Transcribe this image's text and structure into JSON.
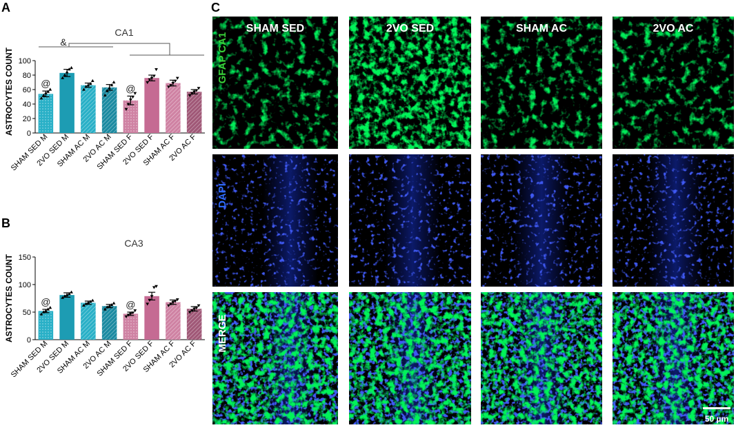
{
  "panels": {
    "A": "A",
    "B": "B",
    "C": "C"
  },
  "chart_data": [
    {
      "type": "bar",
      "title": "CA1",
      "ylabel": "ASTROCYTES COUNT",
      "ylim": [
        0,
        100
      ],
      "yticks": [
        "0",
        "20",
        "40",
        "60",
        "80",
        "100"
      ],
      "categories": [
        "SHAM SED M",
        "2VO SED M",
        "SHAM AC M",
        "2VO AC M",
        "SHAM SED F",
        "2VO SED F",
        "SHAM AC F",
        "2VO AC F"
      ],
      "values": [
        54,
        83,
        66,
        63,
        45,
        76,
        69,
        57
      ],
      "errors": [
        4,
        5,
        3,
        4,
        6,
        4,
        4,
        3
      ],
      "annotations": [
        "@",
        "",
        "",
        "",
        "@",
        "",
        "",
        ""
      ],
      "significance": "&",
      "colors": [
        "#29b0c7",
        "#1d9cb3",
        "#29b0c7",
        "#1b8aa1",
        "#cf82a3",
        "#c56b93",
        "#cf82a3",
        "#a05877"
      ],
      "patterns": [
        "dots",
        "solid",
        "hatch",
        "hatch",
        "dots",
        "solid",
        "hatch",
        "hatch"
      ],
      "points": [
        [
          48,
          52,
          55,
          57,
          60
        ],
        [
          76,
          80,
          84,
          88,
          90
        ],
        [
          60,
          64,
          66,
          68,
          72
        ],
        [
          52,
          58,
          62,
          66,
          70
        ],
        [
          33,
          40,
          46,
          50,
          55
        ],
        [
          70,
          74,
          76,
          79,
          88
        ],
        [
          64,
          66,
          69,
          72,
          76
        ],
        [
          52,
          55,
          57,
          59,
          62
        ]
      ]
    },
    {
      "type": "bar",
      "title": "CA3",
      "ylabel": "ASTROCYTES COUNT",
      "ylim": [
        0,
        150
      ],
      "yticks": [
        "0",
        "50",
        "100",
        "150"
      ],
      "categories": [
        "SHAM SED M",
        "2VO SED M",
        "SHAM AC M",
        "2VO AC M",
        "SHAM SED F",
        "2VO SED F",
        "SHAM AC F",
        "2VO AC F"
      ],
      "values": [
        52,
        81,
        67,
        61,
        47,
        79,
        68,
        56
      ],
      "errors": [
        3,
        4,
        3,
        3,
        3,
        7,
        4,
        4
      ],
      "annotations": [
        "@",
        "",
        "",
        "",
        "@",
        "",
        "",
        ""
      ],
      "colors": [
        "#29b0c7",
        "#1d9cb3",
        "#29b0c7",
        "#1b8aa1",
        "#cf82a3",
        "#c56b93",
        "#cf82a3",
        "#a05877"
      ],
      "patterns": [
        "dots",
        "solid",
        "hatch",
        "hatch",
        "dots",
        "solid",
        "hatch",
        "hatch"
      ],
      "points": [
        [
          46,
          50,
          52,
          55,
          58
        ],
        [
          76,
          79,
          81,
          83,
          86
        ],
        [
          62,
          65,
          67,
          69,
          71
        ],
        [
          55,
          59,
          61,
          63,
          66
        ],
        [
          42,
          45,
          47,
          49,
          53
        ],
        [
          65,
          72,
          79,
          95,
          97
        ],
        [
          62,
          65,
          68,
          70,
          73
        ],
        [
          50,
          53,
          56,
          58,
          62
        ]
      ]
    }
  ],
  "micrographs": {
    "columns": [
      "SHAM SED",
      "2VO SED",
      "SHAM AC",
      "2VO AC"
    ],
    "rows": [
      "GFAP CA1",
      "DAPI",
      "MERGE"
    ],
    "row_colors": [
      "#39d339",
      "#2f6bff",
      "#ffffff"
    ],
    "scale_bar": "50 µm"
  }
}
